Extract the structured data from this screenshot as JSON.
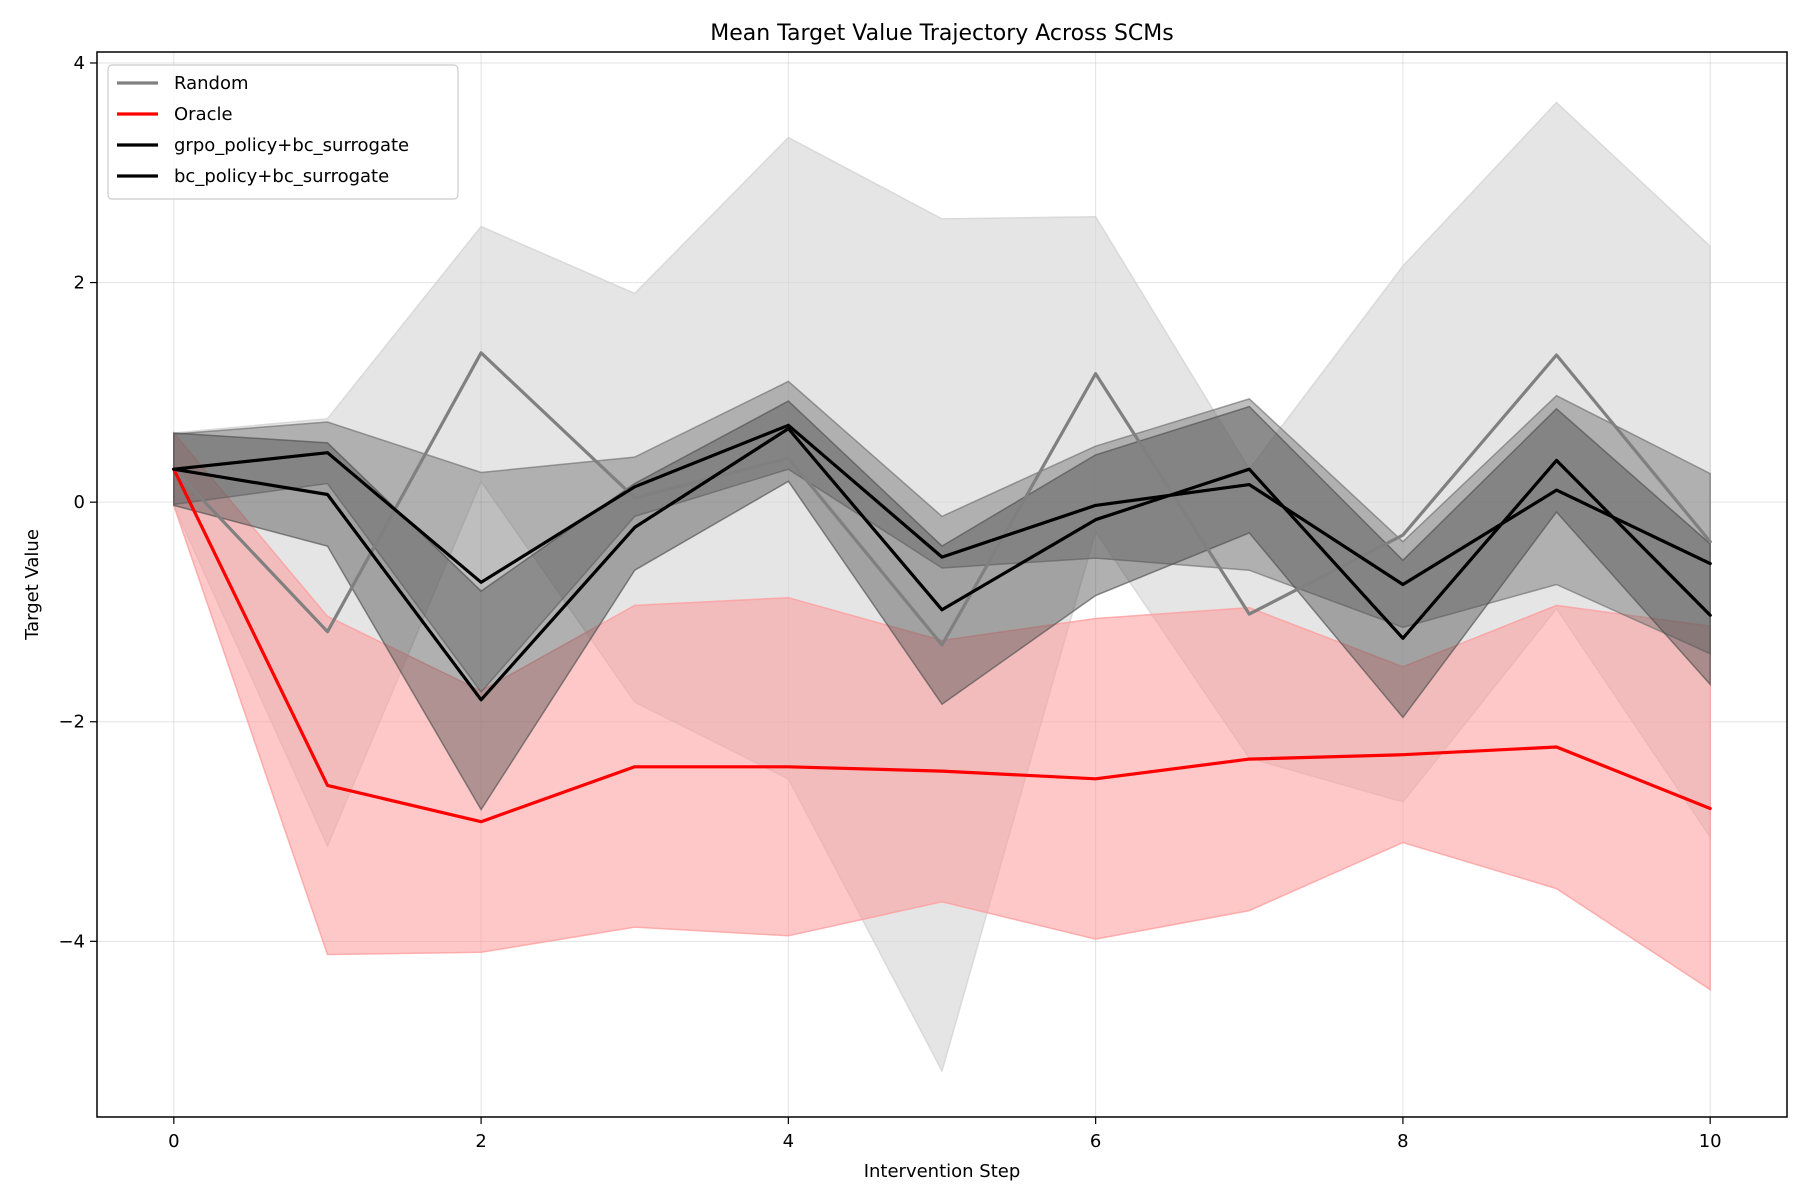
{
  "chart_data": {
    "type": "line",
    "title": "Mean Target Value Trajectory Across SCMs",
    "xlabel": "Intervention Step",
    "ylabel": "Target Value",
    "xlim": [
      -0.5,
      10.5
    ],
    "ylim": [
      -5.6,
      4.1
    ],
    "x_ticks": [
      0,
      2,
      4,
      6,
      8,
      10
    ],
    "x_tick_labels": [
      "0",
      "2",
      "4",
      "6",
      "8",
      "10"
    ],
    "y_ticks": [
      -4,
      -2,
      0,
      2,
      4
    ],
    "y_tick_labels": [
      "−4",
      "−2",
      "0",
      "2",
      "4"
    ],
    "grid": true,
    "legend_position": "top-left",
    "x": [
      0,
      1,
      2,
      3,
      4,
      5,
      6,
      7,
      8,
      9,
      10
    ],
    "series": [
      {
        "name": "Random",
        "color": "#808080",
        "band_color": "#d3d3d3",
        "band_opacity": 0.6,
        "mean": [
          0.3,
          -1.18,
          1.36,
          0.04,
          0.4,
          -1.3,
          1.17,
          -1.02,
          -0.3,
          1.34,
          -0.36
        ],
        "upper": [
          0.63,
          0.76,
          2.51,
          1.9,
          3.32,
          2.58,
          2.6,
          0.3,
          2.15,
          3.64,
          2.33
        ],
        "lower": [
          -0.03,
          -3.13,
          0.19,
          -1.82,
          -2.52,
          -5.18,
          -0.27,
          -2.33,
          -2.73,
          -0.97,
          -3.05
        ]
      },
      {
        "name": "Oracle",
        "color": "#ff0000",
        "band_color": "#ff9a9a",
        "band_opacity": 0.55,
        "mean": [
          0.3,
          -2.58,
          -2.91,
          -2.41,
          -2.41,
          -2.45,
          -2.52,
          -2.34,
          -2.3,
          -2.23,
          -2.79
        ],
        "upper": [
          0.63,
          -1.04,
          -1.72,
          -0.94,
          -0.87,
          -1.26,
          -1.06,
          -0.96,
          -1.5,
          -0.94,
          -1.13
        ],
        "lower": [
          -0.03,
          -4.12,
          -4.1,
          -3.87,
          -3.95,
          -3.64,
          -3.98,
          -3.72,
          -3.1,
          -3.52,
          -4.44
        ]
      },
      {
        "name": "grpo_policy+bc_surrogate",
        "color": "#000000",
        "band_color": "#6f6f6f",
        "band_opacity": 0.45,
        "mean": [
          0.3,
          0.45,
          -0.73,
          0.14,
          0.7,
          -0.5,
          -0.03,
          0.16,
          -0.75,
          0.11,
          -0.56
        ],
        "upper": [
          0.62,
          0.73,
          0.27,
          0.41,
          1.1,
          -0.13,
          0.51,
          0.94,
          -0.36,
          0.97,
          0.26
        ],
        "lower": [
          -0.02,
          0.17,
          -1.73,
          -0.13,
          0.3,
          -0.6,
          -0.51,
          -0.62,
          -1.14,
          -0.75,
          -1.38
        ]
      },
      {
        "name": "bc_policy+bc_surrogate",
        "color": "#000000",
        "band_color": "#4f4f4f",
        "band_opacity": 0.45,
        "mean": [
          0.3,
          0.07,
          -1.8,
          -0.23,
          0.67,
          -0.98,
          -0.16,
          0.3,
          -1.24,
          0.38,
          -1.03
        ],
        "upper": [
          0.63,
          0.54,
          -0.81,
          0.17,
          0.92,
          -0.4,
          0.43,
          0.87,
          -0.53,
          0.85,
          -0.38
        ],
        "lower": [
          -0.03,
          -0.4,
          -2.8,
          -0.62,
          0.19,
          -1.84,
          -0.85,
          -0.28,
          -1.96,
          -0.09,
          -1.66
        ]
      }
    ]
  }
}
